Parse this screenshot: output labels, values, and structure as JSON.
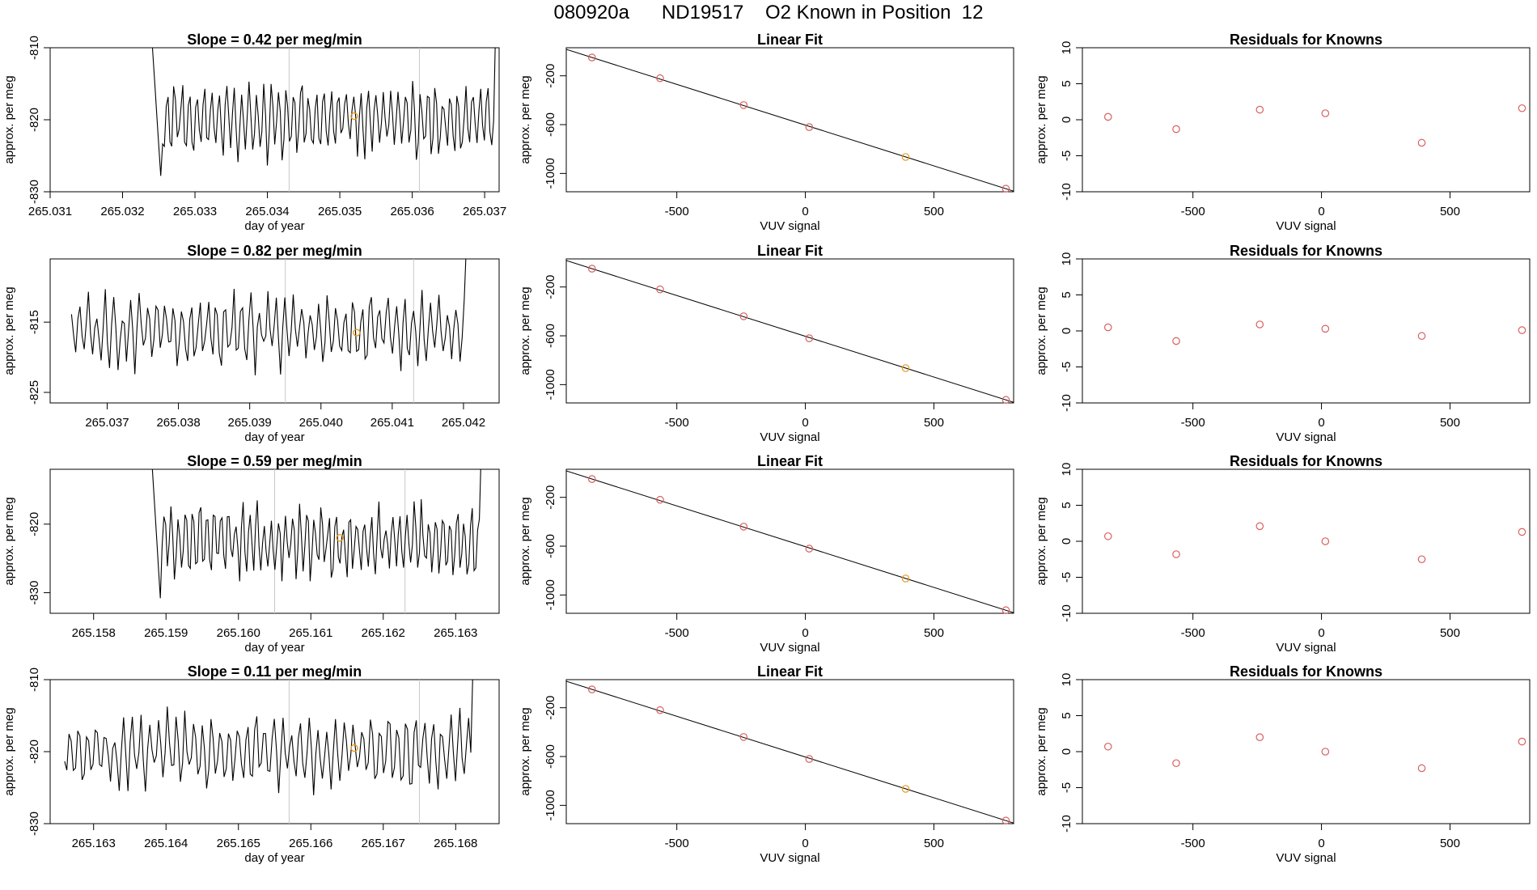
{
  "figure_title": "080920a      ND19517    O2 Known in Position  12",
  "colors": {
    "line": "#000000",
    "point": "#d95f5f",
    "highlight": "#e69a1e",
    "vline": "#c8c8c8"
  },
  "chart_data": [
    {
      "type": "line",
      "panel": "timeseries-1",
      "title": "Slope =  0.42  per meg/min",
      "xlabel": "day of year",
      "ylabel": "approx. per meg",
      "xlim": [
        265.031,
        265.0372
      ],
      "ylim": [
        -830,
        -810
      ],
      "xticks": [
        "265.031",
        "265.032",
        "265.033",
        "265.034",
        "265.035",
        "265.036",
        "265.037"
      ],
      "yticks": [
        "-830",
        "-820",
        "-810"
      ],
      "x_start": 265.0324,
      "x_end": 265.0372,
      "y_series_seed": 1,
      "vlines": [
        265.0343,
        265.0361
      ],
      "highlight": [
        265.0352,
        -819.5
      ]
    },
    {
      "type": "scatter",
      "panel": "linear-fit-1",
      "title": "Linear Fit",
      "xlabel": "VUV signal",
      "ylabel": "approx. per meg",
      "xlim": [
        -930,
        810
      ],
      "ylim": [
        -1150,
        30
      ],
      "xticks": [
        "-500",
        "0",
        "500"
      ],
      "yticks": [
        "-1000",
        "-600",
        "-200"
      ],
      "x": [
        -830,
        -565,
        -240,
        15,
        390,
        780
      ],
      "y": [
        -50,
        -220,
        -440,
        -620,
        -865,
        -1125
      ],
      "highlight_index": 4,
      "fit_line": [
        [
          -830,
          -50
        ],
        [
          780,
          -1125
        ]
      ]
    },
    {
      "type": "scatter",
      "panel": "residuals-1",
      "title": "Residuals for Knowns",
      "xlabel": "VUV signal",
      "ylabel": "approx. per meg",
      "xlim": [
        -930,
        810
      ],
      "ylim": [
        -10,
        10
      ],
      "xticks": [
        "-500",
        "0",
        "500"
      ],
      "yticks": [
        "-10",
        "-5",
        "0",
        "5",
        "10"
      ],
      "x": [
        -830,
        -565,
        -240,
        15,
        390,
        780
      ],
      "y": [
        0.4,
        -1.3,
        1.4,
        0.9,
        -3.2,
        1.6
      ]
    },
    {
      "type": "line",
      "panel": "timeseries-2",
      "title": "Slope =  0.82  per meg/min",
      "xlabel": "day of year",
      "ylabel": "approx. per meg",
      "xlim": [
        265.0362,
        265.0425
      ],
      "ylim": [
        -826.5,
        -806
      ],
      "xticks": [
        "265.037",
        "265.038",
        "265.039",
        "265.040",
        "265.041",
        "265.042"
      ],
      "yticks": [
        "-825",
        "-815"
      ],
      "x_start": 265.0365,
      "x_end": 265.0421,
      "y_series_seed": 2,
      "vlines": [
        265.0395,
        265.0413
      ],
      "highlight": [
        265.0405,
        -816.5
      ]
    },
    {
      "type": "scatter",
      "panel": "linear-fit-2",
      "title": "Linear Fit",
      "xlabel": "VUV signal",
      "ylabel": "approx. per meg",
      "xlim": [
        -930,
        810
      ],
      "ylim": [
        -1150,
        30
      ],
      "xticks": [
        "-500",
        "0",
        "500"
      ],
      "yticks": [
        "-1000",
        "-600",
        "-200"
      ],
      "x": [
        -830,
        -565,
        -240,
        15,
        390,
        780
      ],
      "y": [
        -50,
        -220,
        -440,
        -620,
        -865,
        -1125
      ],
      "highlight_index": 4,
      "fit_line": [
        [
          -830,
          -50
        ],
        [
          780,
          -1125
        ]
      ]
    },
    {
      "type": "scatter",
      "panel": "residuals-2",
      "title": "Residuals for Knowns",
      "xlabel": "VUV signal",
      "ylabel": "approx. per meg",
      "xlim": [
        -930,
        810
      ],
      "ylim": [
        -10,
        10
      ],
      "xticks": [
        "-500",
        "0",
        "500"
      ],
      "yticks": [
        "-10",
        "-5",
        "0",
        "5",
        "10"
      ],
      "x": [
        -830,
        -565,
        -240,
        15,
        390,
        780
      ],
      "y": [
        0.5,
        -1.4,
        0.9,
        0.3,
        -0.7,
        0.1
      ]
    },
    {
      "type": "line",
      "panel": "timeseries-3",
      "title": "Slope =  0.59  per meg/min",
      "xlabel": "day of year",
      "ylabel": "approx. per meg",
      "xlim": [
        265.1574,
        265.1636
      ],
      "ylim": [
        -833,
        -812
      ],
      "xticks": [
        "265.158",
        "265.159",
        "265.160",
        "265.161",
        "265.162",
        "265.163"
      ],
      "yticks": [
        "-830",
        "-820"
      ],
      "x_start": 265.1588,
      "x_end": 265.1634,
      "y_series_seed": 3,
      "vlines": [
        265.1605,
        265.1623
      ],
      "highlight": [
        265.1614,
        -822
      ]
    },
    {
      "type": "scatter",
      "panel": "linear-fit-3",
      "title": "Linear Fit",
      "xlabel": "VUV signal",
      "ylabel": "approx. per meg",
      "xlim": [
        -930,
        810
      ],
      "ylim": [
        -1150,
        30
      ],
      "xticks": [
        "-500",
        "0",
        "500"
      ],
      "yticks": [
        "-1000",
        "-600",
        "-200"
      ],
      "x": [
        -830,
        -565,
        -240,
        15,
        390,
        780
      ],
      "y": [
        -50,
        -220,
        -440,
        -620,
        -865,
        -1125
      ],
      "highlight_index": 4,
      "fit_line": [
        [
          -830,
          -50
        ],
        [
          780,
          -1125
        ]
      ]
    },
    {
      "type": "scatter",
      "panel": "residuals-3",
      "title": "Residuals for Knowns",
      "xlabel": "VUV signal",
      "ylabel": "approx. per meg",
      "xlim": [
        -930,
        810
      ],
      "ylim": [
        -10,
        10
      ],
      "xticks": [
        "-500",
        "0",
        "500"
      ],
      "yticks": [
        "-10",
        "-5",
        "0",
        "5",
        "10"
      ],
      "x": [
        -830,
        -565,
        -240,
        15,
        390,
        780
      ],
      "y": [
        0.7,
        -1.8,
        2.1,
        0.0,
        -2.5,
        1.3
      ]
    },
    {
      "type": "line",
      "panel": "timeseries-4",
      "title": "Slope =  0.11  per meg/min",
      "xlabel": "day of year",
      "ylabel": "approx. per meg",
      "xlim": [
        265.1624,
        265.1686
      ],
      "ylim": [
        -830,
        -810
      ],
      "xticks": [
        "265.163",
        "265.164",
        "265.165",
        "265.166",
        "265.167",
        "265.168"
      ],
      "yticks": [
        "-830",
        "-820",
        "-810"
      ],
      "x_start": 265.1626,
      "x_end": 265.1683,
      "y_series_seed": 4,
      "vlines": [
        265.1657,
        265.1675
      ],
      "highlight": [
        265.1666,
        -819.5
      ]
    },
    {
      "type": "scatter",
      "panel": "linear-fit-4",
      "title": "Linear Fit",
      "xlabel": "VUV signal",
      "ylabel": "approx. per meg",
      "xlim": [
        -930,
        810
      ],
      "ylim": [
        -1150,
        30
      ],
      "xticks": [
        "-500",
        "0",
        "500"
      ],
      "yticks": [
        "-1000",
        "-600",
        "-200"
      ],
      "x": [
        -830,
        -565,
        -240,
        15,
        390,
        780
      ],
      "y": [
        -50,
        -220,
        -440,
        -620,
        -865,
        -1125
      ],
      "highlight_index": 4,
      "fit_line": [
        [
          -830,
          -50
        ],
        [
          780,
          -1125
        ]
      ]
    },
    {
      "type": "scatter",
      "panel": "residuals-4",
      "title": "Residuals for Knowns",
      "xlabel": "VUV signal",
      "ylabel": "approx. per meg",
      "xlim": [
        -930,
        810
      ],
      "ylim": [
        -10,
        10
      ],
      "xticks": [
        "-500",
        "0",
        "500"
      ],
      "yticks": [
        "-10",
        "-5",
        "0",
        "5",
        "10"
      ],
      "x": [
        -830,
        -565,
        -240,
        15,
        390,
        780
      ],
      "y": [
        0.7,
        -1.6,
        2.0,
        0.0,
        -2.3,
        1.4
      ]
    }
  ]
}
